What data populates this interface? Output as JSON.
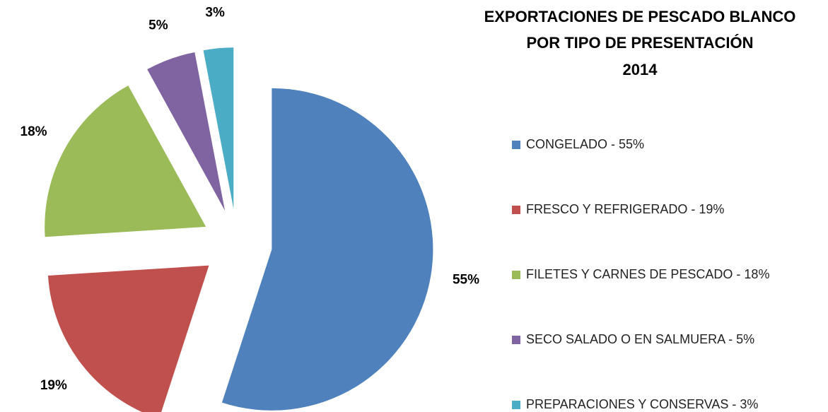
{
  "chart_data": {
    "type": "pie",
    "title": [
      "EXPORTACIONES DE PESCADO BLANCO",
      "POR TIPO DE PRESENTACIÓN",
      "2014"
    ],
    "categories": [
      "CONGELADO - 55%",
      "FRESCO Y REFRIGERADO - 19%",
      "FILETES Y CARNES DE PESCADO  - 18%",
      "SECO SALADO O EN SALMUERA  - 5%",
      "PREPARACIONES Y CONSERVAS - 3%"
    ],
    "values": [
      55,
      19,
      18,
      5,
      3
    ],
    "value_labels": [
      "55%",
      "19%",
      "18%",
      "5%",
      "3%"
    ],
    "colors": [
      "#4f81bd",
      "#c0504d",
      "#9bbb59",
      "#8064a2",
      "#4bacc6"
    ],
    "legend": "right"
  }
}
